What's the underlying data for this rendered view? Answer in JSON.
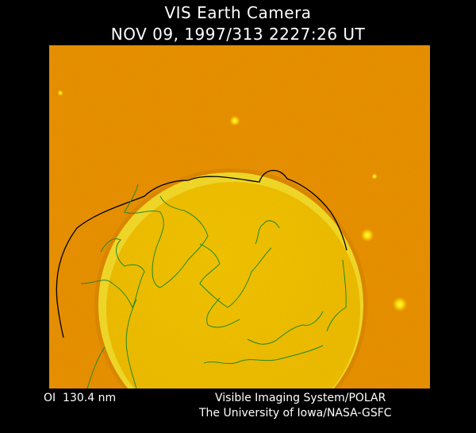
{
  "header": {
    "title": "VIS Earth Camera",
    "timestamp": "NOV 09, 1997/313 2227:26 UT"
  },
  "image": {
    "subject": "Earth far-ultraviolet image",
    "colors": {
      "background": "#e98a00",
      "earth_disk": "#f2c200",
      "limb": "#f7e020",
      "coastline": "#1f8a2a",
      "terminator_outline": "#000000"
    }
  },
  "footer": {
    "band": "OI  130.4 nm",
    "credit_line1": "Visible Imaging System/POLAR",
    "credit_line2": "The University of Iowa/NASA-GSFC"
  }
}
